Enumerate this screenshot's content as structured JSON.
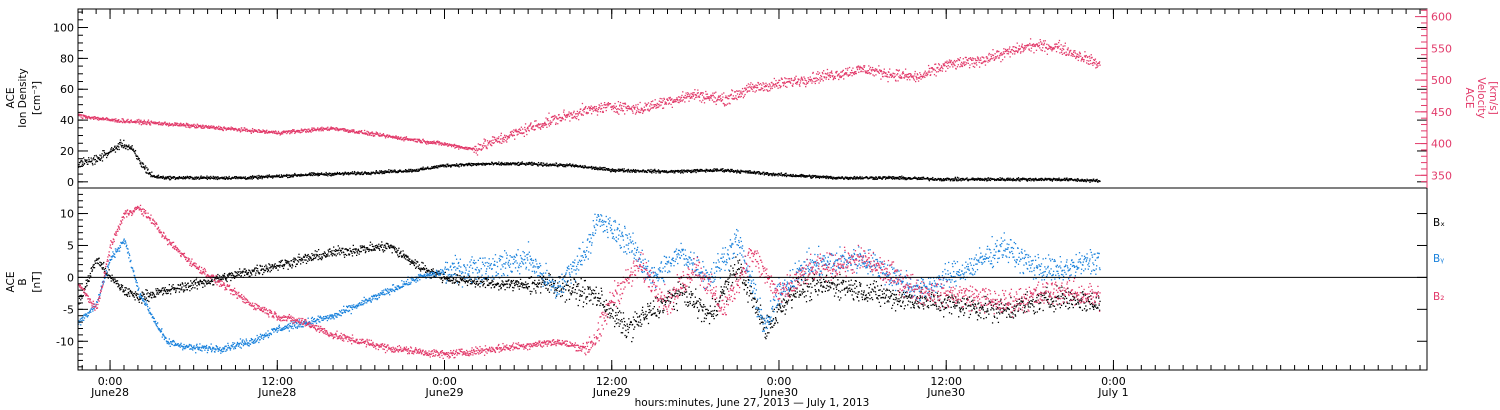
{
  "chart_data": {
    "type": "scatter",
    "colors": {
      "axis": "#000000",
      "black": "#000000",
      "pink": "#e23a6a",
      "blue": "#1a82dc"
    },
    "time_axis": {
      "title": "hours:minutes, June 27, 2013 — July  1, 2013",
      "range_hours": [
        -2.3,
        94.5
      ],
      "ticks": [
        {
          "hour": 0,
          "time": "0:00",
          "day": "June28"
        },
        {
          "hour": 12,
          "time": "12:00",
          "day": "June28"
        },
        {
          "hour": 24,
          "time": "0:00",
          "day": "June29"
        },
        {
          "hour": 36,
          "time": "12:00",
          "day": "June29"
        },
        {
          "hour": 48,
          "time": "0:00",
          "day": "June30"
        },
        {
          "hour": 60,
          "time": "12:00",
          "day": "June30"
        },
        {
          "hour": 72,
          "time": "0:00",
          "day": "July 1"
        }
      ]
    },
    "panels": [
      {
        "id": "plasma",
        "left_axis": {
          "label_lines": [
            "ACE",
            "Ion Density"
          ],
          "units": "[cm⁻³]",
          "range": [
            -4,
            112
          ],
          "ticks": [
            0,
            20,
            40,
            60,
            80,
            100
          ],
          "tick_labels": [
            "0",
            "20",
            "40",
            "60",
            "80",
            "100"
          ]
        },
        "right_axis": {
          "label_lines": [
            "ACE",
            "Velocity"
          ],
          "units": "[km/s]",
          "range": [
            330,
            612
          ],
          "ticks": [
            350,
            400,
            450,
            500,
            550,
            600
          ],
          "tick_labels": [
            "350",
            "400",
            "450",
            "500",
            "550",
            "600"
          ]
        },
        "series": [
          {
            "name": "Ion Density",
            "axis": "left",
            "color": "#000000",
            "x": [
              -2.3,
              -1,
              0,
              0.8,
              1.5,
              2.2,
              3,
              4,
              6,
              10,
              14,
              18,
              22,
              24,
              27,
              30,
              33,
              36,
              40,
              44,
              48,
              52,
              56,
              60,
              64,
              68,
              71
            ],
            "y": [
              12,
              15,
              20,
              25,
              22,
              12,
              4,
              3,
              3,
              3,
              5,
              6,
              8,
              11,
              12,
              12,
              11,
              8,
              7,
              8,
              5,
              3,
              3,
              2,
              2,
              2,
              1
            ]
          },
          {
            "name": "Velocity",
            "axis": "right",
            "color": "#e23a6a",
            "x": [
              -2.3,
              0,
              4,
              8,
              12,
              16,
              20,
              24,
              26,
              28,
              30,
              32,
              34,
              36,
              38,
              40,
              42,
              44,
              46,
              48,
              50,
              52,
              54,
              56,
              58,
              60,
              62,
              64,
              66,
              68,
              70,
              71
            ],
            "y": [
              445,
              438,
              432,
              425,
              418,
              425,
              412,
              400,
              392,
              408,
              425,
              440,
              452,
              460,
              455,
              468,
              478,
              470,
              488,
              495,
              503,
              510,
              518,
              510,
              505,
              525,
              530,
              542,
              555,
              553,
              535,
              525
            ]
          }
        ]
      },
      {
        "id": "field",
        "left_axis": {
          "label_lines": [
            "ACE",
            "B"
          ],
          "units": "[nT]",
          "range": [
            -14.5,
            14
          ],
          "ticks": [
            -10,
            -5,
            0,
            5,
            10
          ],
          "tick_labels": [
            "-10",
            "-5",
            "0",
            "5",
            "10"
          ]
        },
        "zero_line": 0,
        "legend": [
          "Bₓ",
          "Bᵧ",
          "B₂"
        ],
        "series": [
          {
            "name": "Bx",
            "color": "#000000",
            "x": [
              -2.3,
              -1,
              0,
              1,
              2,
              4,
              8,
              12,
              16,
              20,
              22,
              24,
              28,
              32,
              35,
              37,
              39,
              41,
              43,
              45,
              47,
              49,
              52,
              56,
              60,
              64,
              68,
              71
            ],
            "y": [
              -4,
              3,
              0,
              -2,
              -3,
              -2,
              0,
              2,
              4,
              5,
              2,
              0,
              -1,
              -1,
              -3,
              -8,
              -5,
              -2,
              -6,
              2,
              -8,
              -2,
              -1,
              -3,
              -4,
              -5,
              -3,
              -4
            ]
          },
          {
            "name": "By",
            "color": "#1a82dc",
            "x": [
              -2.3,
              -1,
              0,
              1,
              2,
              4,
              6,
              8,
              10,
              12,
              14,
              16,
              18,
              20,
              22,
              24,
              28,
              30,
              32,
              34,
              35,
              37,
              39,
              41,
              43,
              45,
              47,
              48,
              50,
              54,
              58,
              62,
              64,
              66,
              68,
              71
            ],
            "y": [
              -7,
              -4,
              3,
              6,
              -2,
              -10,
              -11,
              -11,
              -10,
              -8,
              -7,
              -6,
              -4,
              -2,
              0,
              1,
              2,
              3,
              -2,
              4,
              9,
              6,
              0,
              4,
              0,
              6,
              -8,
              -2,
              2,
              3,
              -2,
              2,
              5,
              2,
              1,
              3
            ]
          },
          {
            "name": "Bz",
            "color": "#e23a6a",
            "x": [
              -2.3,
              -1,
              0,
              1,
              2,
              3,
              4,
              6,
              8,
              10,
              12,
              14,
              16,
              18,
              20,
              24,
              28,
              32,
              34,
              35,
              36,
              38,
              40,
              42,
              44,
              46,
              48,
              50,
              54,
              58,
              62,
              64,
              66,
              68,
              71
            ],
            "y": [
              -1,
              -5,
              5,
              10,
              11,
              9,
              6,
              2,
              -1,
              -4,
              -6,
              -7,
              -9,
              -10,
              -11,
              -12,
              -11,
              -10,
              -11,
              -9,
              -3,
              2,
              -4,
              2,
              -5,
              4,
              -3,
              1,
              3,
              -2,
              -3,
              -4,
              -3,
              -2,
              -3
            ]
          }
        ]
      }
    ]
  }
}
